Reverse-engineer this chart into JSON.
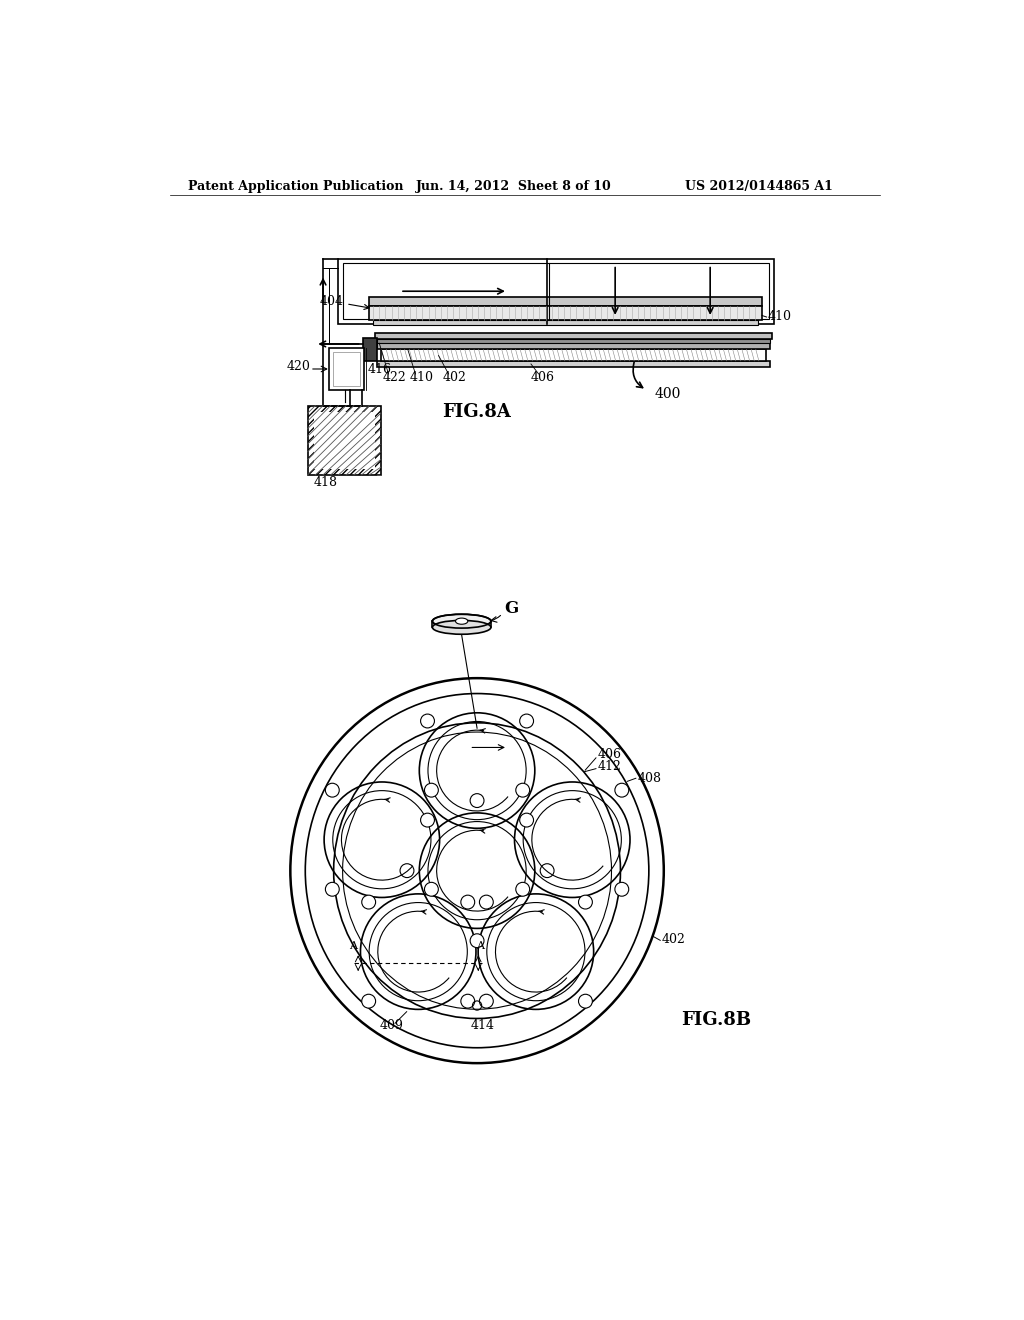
{
  "bg_color": "#ffffff",
  "line_color": "#000000",
  "header_left": "Patent Application Publication",
  "header_center": "Jun. 14, 2012  Sheet 8 of 10",
  "header_right": "US 2012/0144865 A1",
  "fig8a_label": "FIG.8A",
  "fig8b_label": "FIG.8B",
  "label_400": "400",
  "label_402": "402",
  "label_404": "404",
  "label_406": "406",
  "label_408": "408",
  "label_409": "409",
  "label_410": "410",
  "label_412": "412",
  "label_414": "414",
  "label_416": "416",
  "label_418": "418",
  "label_420": "420",
  "label_422": "422",
  "label_G": "G",
  "label_A1": "A",
  "label_A2": "A"
}
